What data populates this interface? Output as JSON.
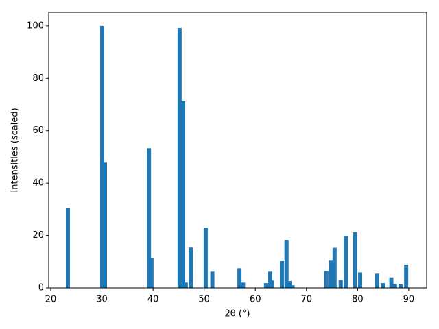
{
  "chart_data": {
    "type": "bar",
    "xlabel": "2θ (°)",
    "ylabel": "Intensities (scaled)",
    "color": "#1f77b4",
    "grid": false,
    "x": [
      23.35,
      30.06,
      30.6,
      39.2,
      39.7,
      45.2,
      45.9,
      46.4,
      47.4,
      50.3,
      51.6,
      56.9,
      57.6,
      62.1,
      62.9,
      63.3,
      65.2,
      66.1,
      66.7,
      67.3,
      73.9,
      74.8,
      75.5,
      76.7,
      77.7,
      79.5,
      80.5,
      83.8,
      85.0,
      86.6,
      87.3,
      88.4,
      89.5
    ],
    "values": [
      30.5,
      100,
      47.8,
      53.3,
      11.5,
      99.2,
      71.2,
      2,
      15.4,
      23,
      6.2,
      7.5,
      2,
      1.8,
      6.2,
      2.8,
      10.2,
      18.3,
      2.6,
      1,
      6.5,
      10.4,
      15.3,
      3,
      19.8,
      21.2,
      5.9,
      5.4,
      1.8,
      4,
      1.5,
      1.4,
      8.9
    ],
    "xlim": [
      19.6,
      93.5
    ],
    "ylim": [
      0,
      105.2
    ],
    "xticks": [
      20,
      30,
      40,
      50,
      60,
      70,
      80,
      90
    ],
    "yticks": [
      0,
      20,
      40,
      60,
      80,
      100
    ]
  }
}
